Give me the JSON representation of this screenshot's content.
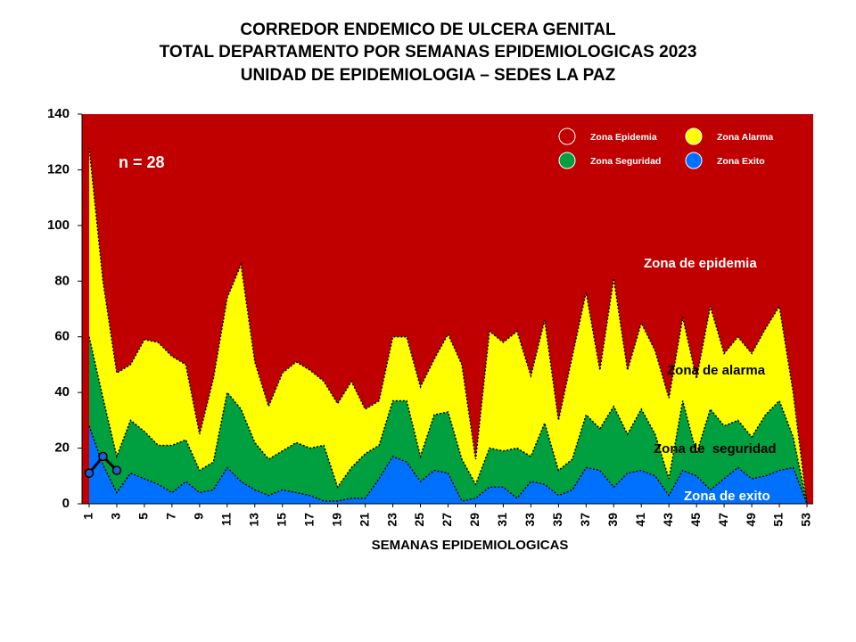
{
  "chart_data": {
    "type": "area",
    "title": [
      "CORREDOR ENDEMICO DE ULCERA GENITAL",
      "TOTAL DEPARTAMENTO POR SEMANAS EPIDEMIOLOGICAS 2023",
      "UNIDAD DE EPIDEMIOLOGIA – SEDES LA PAZ"
    ],
    "x_label": "SEMANAS EPIDEMIOLOGICAS",
    "categories": [
      1,
      null,
      3,
      null,
      5,
      null,
      7,
      null,
      9,
      null,
      11,
      null,
      13,
      null,
      15,
      null,
      17,
      null,
      19,
      null,
      21,
      null,
      23,
      null,
      25,
      null,
      27,
      null,
      29,
      null,
      31,
      null,
      33,
      null,
      35,
      null,
      37,
      null,
      39,
      null,
      41,
      null,
      43,
      null,
      45,
      null,
      47,
      null,
      49,
      null,
      51,
      null,
      53
    ],
    "ylim": [
      0,
      140
    ],
    "yticks": [
      0,
      20,
      40,
      60,
      80,
      100,
      120,
      140
    ],
    "background_zone": {
      "name": "Zona Epidemia",
      "color": "#c00000"
    },
    "series": [
      {
        "name": "Zona Alarma",
        "color": "#ffff00",
        "values": [
          128,
          80,
          47,
          50,
          59,
          58,
          53,
          50,
          25,
          45,
          74,
          86,
          51,
          35,
          47,
          51,
          48,
          44,
          36,
          44,
          34,
          37,
          60,
          60,
          42,
          52,
          61,
          50,
          16,
          62,
          58,
          62,
          46,
          66,
          30,
          53,
          76,
          48,
          81,
          48,
          65,
          55,
          38,
          67,
          45,
          71,
          54,
          60,
          54,
          63,
          71,
          40,
          0
        ]
      },
      {
        "name": "Zona Seguridad",
        "color": "#00a040",
        "values": [
          60,
          38,
          17,
          30,
          26,
          21,
          21,
          23,
          12,
          15,
          40,
          34,
          22,
          16,
          19,
          22,
          20,
          21,
          6,
          13,
          18,
          21,
          37,
          37,
          17,
          32,
          33,
          16,
          7,
          20,
          19,
          20,
          17,
          29,
          12,
          16,
          32,
          27,
          35,
          25,
          34,
          25,
          9,
          37,
          18,
          34,
          28,
          30,
          24,
          32,
          37,
          24,
          0
        ]
      },
      {
        "name": "Zona Exito",
        "color": "#0070ff",
        "values": [
          28,
          14,
          4,
          11,
          9,
          7,
          4,
          8,
          4,
          5,
          13,
          8,
          5,
          3,
          5,
          4,
          3,
          1,
          1,
          2,
          2,
          9,
          17,
          15,
          8,
          12,
          11,
          1,
          2,
          6,
          6,
          2,
          8,
          7,
          3,
          5,
          13,
          12,
          6,
          11,
          12,
          10,
          3,
          12,
          10,
          5,
          9,
          13,
          9,
          10,
          12,
          13,
          0
        ]
      }
    ],
    "observed": {
      "color": "#000000",
      "marker_color": "#1f5fd0",
      "values": [
        11,
        17,
        12,
        null,
        null,
        null,
        null,
        null,
        null,
        null,
        null,
        null,
        null,
        null,
        null,
        null,
        null,
        null,
        null,
        null,
        null,
        null,
        null,
        null,
        null,
        null,
        null,
        null,
        null,
        null,
        null,
        null,
        null,
        null,
        null,
        null,
        null,
        null,
        null,
        null,
        null,
        null,
        null,
        null,
        null,
        null,
        null,
        null,
        null,
        null,
        null,
        null,
        null
      ]
    },
    "annotations": [
      "n = 28",
      "Zona de epidemia",
      "Zona de alarma",
      "Zona de  seguridad",
      "Zona de exito"
    ]
  }
}
